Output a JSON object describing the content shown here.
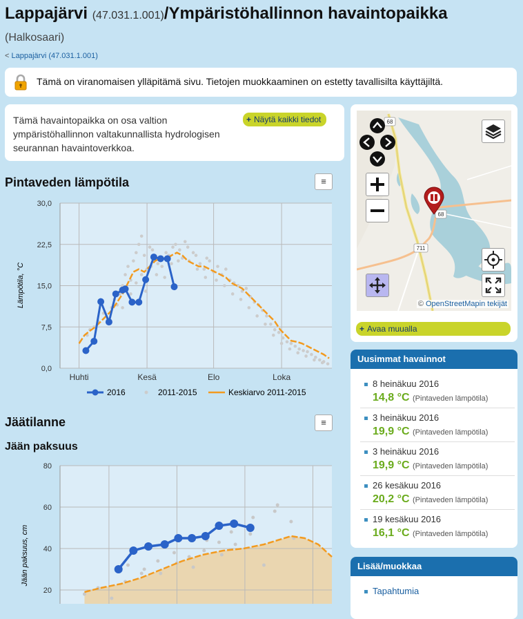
{
  "header": {
    "title_name": "Lappajärvi",
    "title_code": "(47.031.1.001)",
    "title_rest": "/Ympäristöhallinnon havaintopaikka",
    "subtitle": "(Halkosaari)",
    "breadcrumb_prefix": "<",
    "breadcrumb_link": "Lappajärvi (47.031.1.001)"
  },
  "notice": {
    "icon": "lock-icon",
    "text": "Tämä on viranomaisen ylläpitämä sivu. Tietojen muokkaaminen on estetty tavallisilta käyttäjiltä."
  },
  "info": {
    "text": "Tämä havaintopaikka on osa valtion ympäristöhallinnon valtakunnallista hydrologisen seurannan havaintoverkkoa.",
    "show_all_button": "Näytä kaikki tiedot"
  },
  "map": {
    "road_labels": [
      "68",
      "68",
      "711"
    ],
    "attribution_prefix": "©",
    "attribution_link": "OpenStreetMapin tekijät",
    "open_elsewhere_button": "Avaa muualla",
    "controls": [
      "pan-up",
      "pan-left",
      "pan-right",
      "pan-down",
      "zoom-in",
      "zoom-out",
      "layers",
      "locate",
      "fullscreen",
      "move"
    ]
  },
  "sections": {
    "surface_temp_title": "Pintaveden lämpötila",
    "ice_title": "Jäätilanne",
    "ice_thickness_title": "Jään paksuus",
    "menu_glyph": "≡"
  },
  "chart_data": [
    {
      "type": "line",
      "title": "",
      "ylabel": "Lämpötila, °C",
      "xlabel": "",
      "ylim": [
        0,
        30
      ],
      "yticks": [
        "0,0",
        "7,5",
        "15,0",
        "22,5",
        "30,0"
      ],
      "xticks": [
        "Huhti",
        "Kesä",
        "Elo",
        "Loka"
      ],
      "xlim": [
        0,
        200
      ],
      "xtick_positions": [
        14,
        64,
        113,
        163
      ],
      "grid": true,
      "legend": "bottom",
      "series": [
        {
          "name": "2016",
          "color": "#2b63c8",
          "style": "line-markers",
          "x": [
            19,
            25,
            30,
            36,
            41,
            46,
            48,
            53,
            58,
            63,
            69,
            74,
            79,
            84
          ],
          "y": [
            3.2,
            4.9,
            12.1,
            8.4,
            13.5,
            14.2,
            14.4,
            12.0,
            12.0,
            16.1,
            20.2,
            19.9,
            19.9,
            14.8
          ]
        },
        {
          "name": "2011-2015",
          "color": "#cccccc",
          "style": "scatter",
          "points": [
            [
              20,
              6.0
            ],
            [
              22,
              7.0
            ],
            [
              25,
              7.5
            ],
            [
              28,
              8.5
            ],
            [
              32,
              10.0
            ],
            [
              35,
              9.0
            ],
            [
              38,
              11.0
            ],
            [
              40,
              12.5
            ],
            [
              42,
              11.5
            ],
            [
              44,
              13.5
            ],
            [
              46,
              15.0
            ],
            [
              48,
              17.0
            ],
            [
              50,
              18.5
            ],
            [
              52,
              16.0
            ],
            [
              54,
              19.5
            ],
            [
              56,
              21.0
            ],
            [
              58,
              22.5
            ],
            [
              60,
              24.0
            ],
            [
              62,
              20.5
            ],
            [
              64,
              18.0
            ],
            [
              66,
              22.0
            ],
            [
              68,
              21.5
            ],
            [
              70,
              20.0
            ],
            [
              72,
              19.0
            ],
            [
              75,
              18.5
            ],
            [
              78,
              21.0
            ],
            [
              80,
              20.5
            ],
            [
              83,
              22.0
            ],
            [
              85,
              22.5
            ],
            [
              88,
              21.5
            ],
            [
              90,
              20.0
            ],
            [
              92,
              23.0
            ],
            [
              95,
              19.5
            ],
            [
              98,
              21.0
            ],
            [
              100,
              20.5
            ],
            [
              103,
              19.0
            ],
            [
              106,
              18.0
            ],
            [
              108,
              20.0
            ],
            [
              110,
              19.5
            ],
            [
              113,
              17.5
            ],
            [
              116,
              18.5
            ],
            [
              119,
              17.0
            ],
            [
              122,
              18.0
            ],
            [
              125,
              16.0
            ],
            [
              128,
              15.5
            ],
            [
              131,
              15.0
            ],
            [
              134,
              14.0
            ],
            [
              137,
              14.5
            ],
            [
              140,
              13.0
            ],
            [
              143,
              12.0
            ],
            [
              146,
              11.5
            ],
            [
              149,
              10.5
            ],
            [
              152,
              9.5
            ],
            [
              155,
              8.0
            ],
            [
              158,
              7.0
            ],
            [
              161,
              6.5
            ],
            [
              164,
              5.5
            ],
            [
              167,
              4.8
            ],
            [
              170,
              4.5
            ],
            [
              173,
              4.0
            ],
            [
              176,
              3.5
            ],
            [
              179,
              3.2
            ],
            [
              182,
              3.0
            ],
            [
              185,
              2.5
            ],
            [
              188,
              2.0
            ],
            [
              191,
              1.5
            ],
            [
              194,
              1.2
            ],
            [
              197,
              0.8
            ],
            [
              46,
              11.0
            ],
            [
              52,
              13.5
            ],
            [
              56,
              15.5
            ],
            [
              60,
              17.0
            ],
            [
              63,
              14.0
            ],
            [
              67,
              18.5
            ],
            [
              71,
              17.0
            ],
            [
              77,
              16.5
            ],
            [
              82,
              19.0
            ],
            [
              87,
              19.5
            ],
            [
              94,
              22.0
            ],
            [
              101,
              18.0
            ],
            [
              107,
              16.5
            ],
            [
              115,
              16.0
            ],
            [
              121,
              15.0
            ],
            [
              127,
              13.5
            ],
            [
              133,
              12.5
            ],
            [
              139,
              11.0
            ],
            [
              145,
              9.5
            ],
            [
              151,
              8.0
            ],
            [
              157,
              6.0
            ],
            [
              163,
              4.5
            ],
            [
              169,
              3.5
            ],
            [
              175,
              2.8
            ],
            [
              181,
              2.2
            ],
            [
              187,
              1.5
            ],
            [
              193,
              1.0
            ]
          ]
        },
        {
          "name": "Keskiarvo 2011-2015",
          "color": "#f29a1f",
          "style": "dashed",
          "x": [
            14,
            18,
            22,
            26,
            30,
            34,
            38,
            42,
            46,
            50,
            54,
            58,
            62,
            66,
            70,
            74,
            78,
            82,
            86,
            90,
            94,
            98,
            102,
            106,
            110,
            114,
            118,
            122,
            126,
            130,
            134,
            138,
            142,
            146,
            150,
            154,
            158,
            162,
            166,
            170,
            174,
            178,
            182,
            186,
            190,
            194,
            198
          ],
          "y": [
            4.5,
            6.0,
            6.8,
            7.5,
            8.5,
            9.5,
            10.5,
            12.0,
            13.5,
            15.5,
            17.5,
            18.0,
            17.5,
            18.5,
            19.5,
            20.0,
            19.8,
            20.5,
            21.0,
            20.5,
            19.5,
            19.0,
            18.5,
            18.5,
            18.0,
            17.5,
            17.0,
            16.5,
            15.5,
            15.0,
            14.5,
            13.5,
            12.5,
            11.5,
            10.5,
            9.5,
            8.5,
            7.0,
            6.0,
            5.0,
            4.8,
            4.5,
            4.0,
            3.5,
            3.0,
            2.5,
            1.8
          ]
        }
      ]
    },
    {
      "type": "line",
      "title": "",
      "ylabel": "Jään paksuus, cm",
      "xlabel": "",
      "ylim": [
        0,
        80
      ],
      "yticks": [
        "20",
        "40",
        "60",
        "80"
      ],
      "xlim": [
        0,
        200
      ],
      "grid": true,
      "legend": "none",
      "series": [
        {
          "name": "",
          "color": "#2b63c8",
          "style": "line-markers",
          "x": [
            43,
            54,
            65,
            77,
            87,
            97,
            107,
            117,
            128,
            140
          ],
          "y": [
            30,
            39,
            41,
            42,
            45,
            45,
            46,
            51,
            52,
            50
          ]
        },
        {
          "name": "",
          "color": "#cccccc",
          "style": "scatter",
          "points": [
            [
              18,
              18
            ],
            [
              28,
              21
            ],
            [
              38,
              16
            ],
            [
              48,
              24
            ],
            [
              50,
              32
            ],
            [
              60,
              28
            ],
            [
              62,
              30
            ],
            [
              72,
              34
            ],
            [
              74,
              28
            ],
            [
              84,
              38
            ],
            [
              86,
              33
            ],
            [
              95,
              36
            ],
            [
              98,
              31
            ],
            [
              106,
              39
            ],
            [
              108,
              44
            ],
            [
              117,
              43
            ],
            [
              119,
              37
            ],
            [
              126,
              48
            ],
            [
              129,
              42
            ],
            [
              140,
              47
            ],
            [
              142,
              55
            ],
            [
              150,
              32
            ],
            [
              158,
              58
            ],
            [
              160,
              61
            ],
            [
              170,
              53
            ],
            [
              172,
              45
            ]
          ]
        },
        {
          "name": "",
          "color": "#f29a1f",
          "style": "dashed-area",
          "x": [
            18,
            30,
            45,
            60,
            75,
            90,
            105,
            120,
            135,
            150,
            160,
            170,
            180,
            190,
            200
          ],
          "y": [
            19,
            21,
            23,
            26,
            30,
            34,
            37,
            39,
            40,
            42,
            44,
            46,
            45,
            42,
            36
          ]
        }
      ]
    }
  ],
  "latest_observations": {
    "title": "Uusimmat havainnot",
    "items": [
      {
        "date": "8 heinäkuu 2016",
        "value": "14,8 °C",
        "kind": "(Pintaveden lämpötila)"
      },
      {
        "date": "3 heinäkuu 2016",
        "value": "19,9 °C",
        "kind": "(Pintaveden lämpötila)"
      },
      {
        "date": "3 heinäkuu 2016",
        "value": "19,9 °C",
        "kind": "(Pintaveden lämpötila)"
      },
      {
        "date": "26 kesäkuu 2016",
        "value": "20,2 °C",
        "kind": "(Pintaveden lämpötila)"
      },
      {
        "date": "19 kesäkuu 2016",
        "value": "16,1 °C",
        "kind": "(Pintaveden lämpötila)"
      }
    ]
  },
  "add_edit": {
    "title": "Lisää/muokkaa",
    "items": [
      "Tapahtumia"
    ]
  },
  "colors": {
    "page_bg": "#c6e3f3",
    "accent_blue": "#1b6fae",
    "series_2016": "#2b63c8",
    "average": "#f29a1f",
    "value_green": "#6aab1c",
    "button_lime": "#c9d42a"
  }
}
